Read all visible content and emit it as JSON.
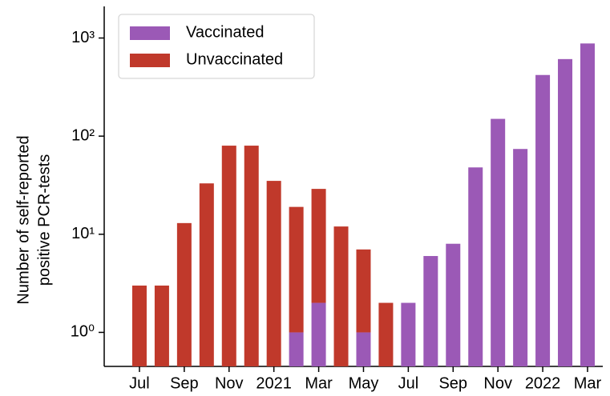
{
  "chart_data": {
    "type": "stacked_bar",
    "ylabel": [
      "Number of self-reported",
      "positive PCR-tests"
    ],
    "categories": [
      "Jul",
      null,
      "Sep",
      null,
      "Nov",
      null,
      "2021",
      null,
      "Mar",
      null,
      "May",
      null,
      "Jul",
      null,
      "Sep",
      null,
      "Nov",
      null,
      "2022",
      null,
      "Mar"
    ],
    "series": [
      {
        "name": "Vaccinated",
        "color": "#9b59b6",
        "values": [
          0,
          0,
          0,
          0,
          0,
          0,
          0,
          1,
          2,
          0,
          1,
          0,
          2,
          6,
          8,
          48,
          150,
          74,
          420,
          610,
          880
        ]
      },
      {
        "name": "Unvaccinated",
        "color": "#c0392b",
        "values": [
          3,
          3,
          13,
          33,
          80,
          80,
          35,
          18,
          27,
          12,
          6,
          2,
          0,
          0,
          0,
          0,
          0,
          0,
          0,
          0,
          0
        ]
      }
    ],
    "log_scale": true,
    "ylim": [
      0.45,
      2100
    ],
    "yticks": [
      {
        "value": 1,
        "label": "10⁰"
      },
      {
        "value": 10,
        "label": "10¹"
      },
      {
        "value": 100,
        "label": "10²"
      },
      {
        "value": 1000,
        "label": "10³"
      }
    ],
    "legend": "upper left"
  }
}
